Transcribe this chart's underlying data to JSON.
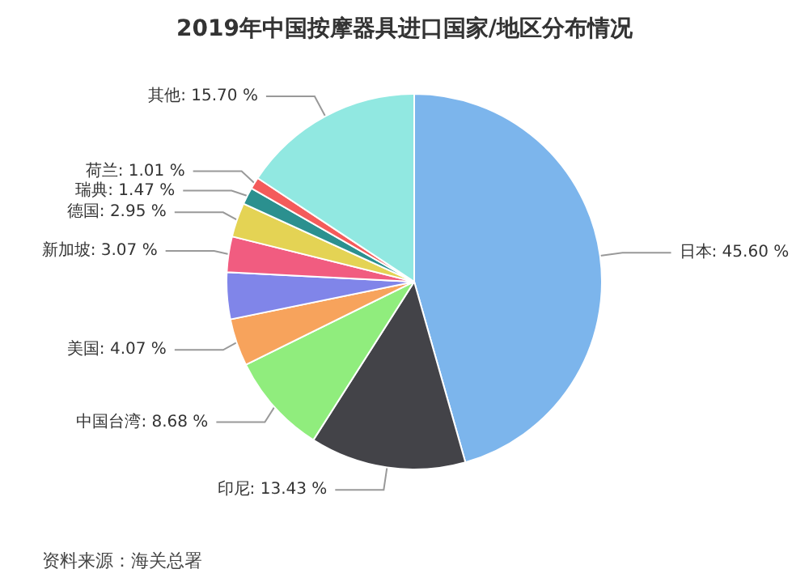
{
  "chart_data": {
    "type": "pie",
    "title": "2019年中国按摩器具进口国家/地区分布情况",
    "categories": [
      "日本",
      "印尼",
      "中国台湾",
      "美国",
      null,
      "新加坡",
      "德国",
      "瑞典",
      "荷兰",
      "其他"
    ],
    "values": [
      45.6,
      13.43,
      8.68,
      4.07,
      4.02,
      3.07,
      2.95,
      1.47,
      1.01,
      15.7
    ],
    "value_labels": [
      "45.60 %",
      "13.43 %",
      "8.68 %",
      "4.07 %",
      null,
      "3.07 %",
      "2.95 %",
      "1.47 %",
      "1.01 %",
      "15.70 %"
    ],
    "colors": [
      "#7cb5ec",
      "#434348",
      "#90ed7d",
      "#f7a35c",
      "#8085e9",
      "#f15c80",
      "#e4d354",
      "#2b908f",
      "#f45b5b",
      "#91e8e1"
    ],
    "annotations": [
      "资料来源：海关总署"
    ],
    "legend": false
  }
}
